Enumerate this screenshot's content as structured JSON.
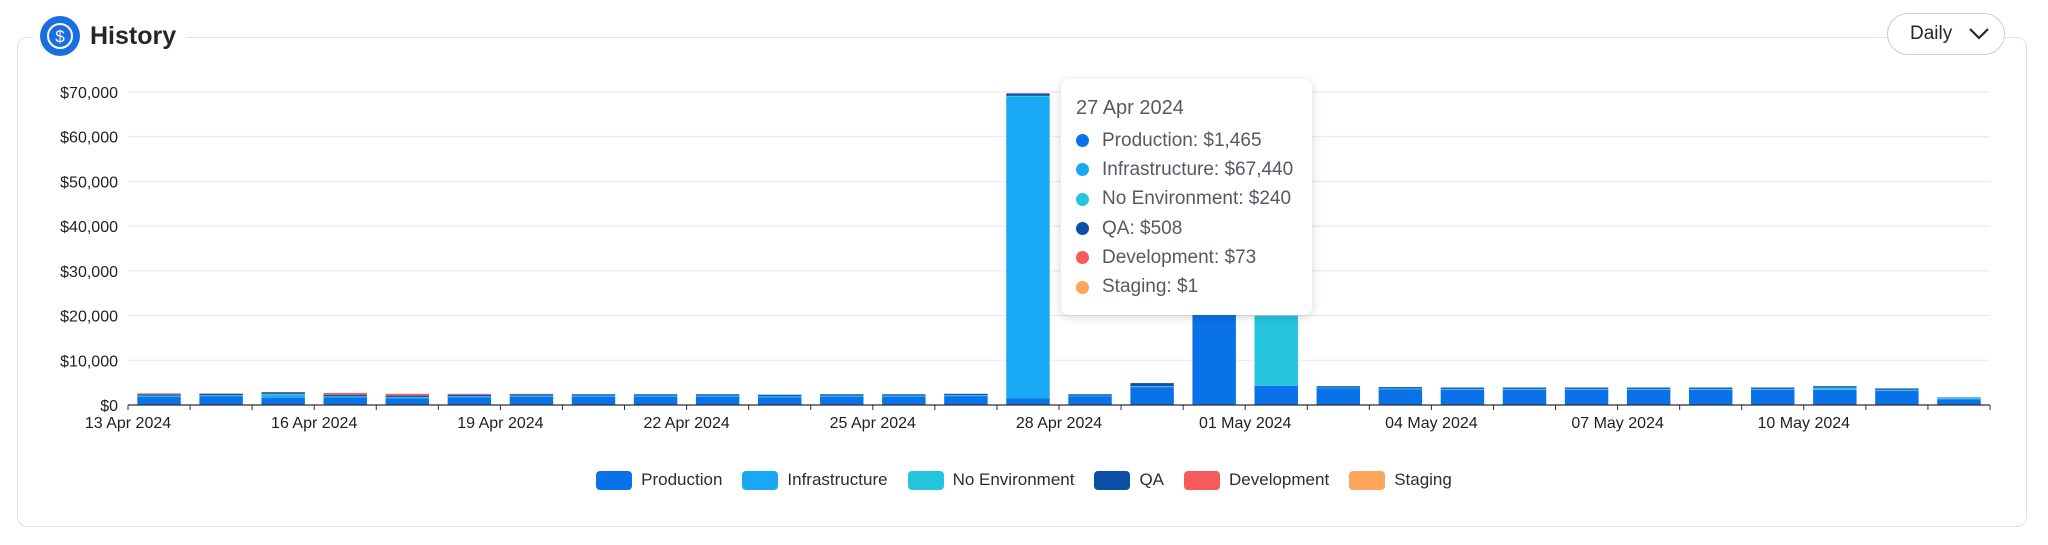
{
  "header": {
    "title": "History",
    "icon": "dollar-coin-icon",
    "period_select": {
      "value": "Daily"
    }
  },
  "tooltip": {
    "date": "27 Apr 2024",
    "rows": [
      {
        "label": "Production: $1,465",
        "color": "#0a72e8"
      },
      {
        "label": "Infrastructure: $67,440",
        "color": "#19a8f3"
      },
      {
        "label": "No Environment: $240",
        "color": "#26c5de"
      },
      {
        "label": "QA: $508",
        "color": "#0b4fa8"
      },
      {
        "label": "Development: $73",
        "color": "#f65a5a"
      },
      {
        "label": "Staging: $1",
        "color": "#ffa559"
      }
    ]
  },
  "chart_data": {
    "type": "bar",
    "stacked": true,
    "categories": [
      "13 Apr 2024",
      "14 Apr 2024",
      "15 Apr 2024",
      "16 Apr 2024",
      "17 Apr 2024",
      "18 Apr 2024",
      "19 Apr 2024",
      "20 Apr 2024",
      "21 Apr 2024",
      "22 Apr 2024",
      "23 Apr 2024",
      "24 Apr 2024",
      "25 Apr 2024",
      "26 Apr 2024",
      "27 Apr 2024",
      "28 Apr 2024",
      "29 Apr 2024",
      "30 Apr 2024",
      "01 May 2024",
      "02 May 2024",
      "03 May 2024",
      "04 May 2024",
      "05 May 2024",
      "06 May 2024",
      "07 May 2024",
      "08 May 2024",
      "09 May 2024",
      "10 May 2024",
      "11 May 2024",
      "12 May 2024"
    ],
    "tick_labels": [
      "13 Apr 2024",
      "16 Apr 2024",
      "19 Apr 2024",
      "22 Apr 2024",
      "25 Apr 2024",
      "28 Apr 2024",
      "01 May 2024",
      "04 May 2024",
      "07 May 2024",
      "10 May 2024"
    ],
    "tick_indices": [
      0,
      3,
      6,
      9,
      12,
      15,
      18,
      21,
      24,
      27
    ],
    "ylim": [
      0,
      70000
    ],
    "yticks": [
      0,
      10000,
      20000,
      30000,
      40000,
      50000,
      60000,
      70000
    ],
    "ytick_labels": [
      "$0",
      "$10,000",
      "$20,000",
      "$30,000",
      "$40,000",
      "$50,000",
      "$60,000",
      "$70,000"
    ],
    "grid": true,
    "legend_position": "bottom",
    "series": [
      {
        "name": "Production",
        "color": "#0a72e8",
        "values": [
          1800,
          1900,
          1600,
          1700,
          1500,
          1700,
          1800,
          1800,
          1800,
          1800,
          1700,
          1800,
          1800,
          1900,
          1465,
          1900,
          4000,
          30000,
          4300,
          3700,
          3500,
          3400,
          3400,
          3400,
          3400,
          3400,
          3400,
          3400,
          3200,
          1300
        ]
      },
      {
        "name": "Infrastructure",
        "color": "#19a8f3",
        "values": [
          200,
          200,
          600,
          200,
          200,
          200,
          200,
          200,
          200,
          200,
          200,
          200,
          200,
          200,
          67440,
          100,
          100,
          0,
          0,
          100,
          100,
          100,
          100,
          100,
          100,
          100,
          100,
          100,
          100,
          100
        ]
      },
      {
        "name": "No Environment",
        "color": "#26c5de",
        "values": [
          100,
          100,
          300,
          100,
          100,
          100,
          100,
          100,
          100,
          100,
          100,
          100,
          100,
          100,
          240,
          100,
          100,
          0,
          15700,
          100,
          100,
          100,
          100,
          100,
          100,
          100,
          100,
          400,
          100,
          200
        ]
      },
      {
        "name": "QA",
        "color": "#0b4fa8",
        "values": [
          300,
          300,
          300,
          300,
          300,
          300,
          300,
          300,
          300,
          300,
          300,
          300,
          300,
          300,
          508,
          300,
          700,
          0,
          0,
          300,
          300,
          300,
          300,
          300,
          300,
          300,
          300,
          300,
          300,
          100
        ]
      },
      {
        "name": "Development",
        "color": "#f65a5a",
        "values": [
          200,
          100,
          100,
          400,
          400,
          200,
          100,
          0,
          0,
          0,
          0,
          0,
          0,
          0,
          73,
          0,
          0,
          0,
          0,
          0,
          0,
          0,
          0,
          0,
          0,
          0,
          0,
          0,
          0,
          0
        ]
      },
      {
        "name": "Staging",
        "color": "#ffa559",
        "values": [
          0,
          0,
          0,
          0,
          0,
          0,
          0,
          0,
          0,
          0,
          0,
          0,
          0,
          0,
          1,
          0,
          0,
          0,
          0,
          0,
          0,
          0,
          0,
          0,
          0,
          0,
          0,
          0,
          0,
          0
        ]
      }
    ]
  }
}
